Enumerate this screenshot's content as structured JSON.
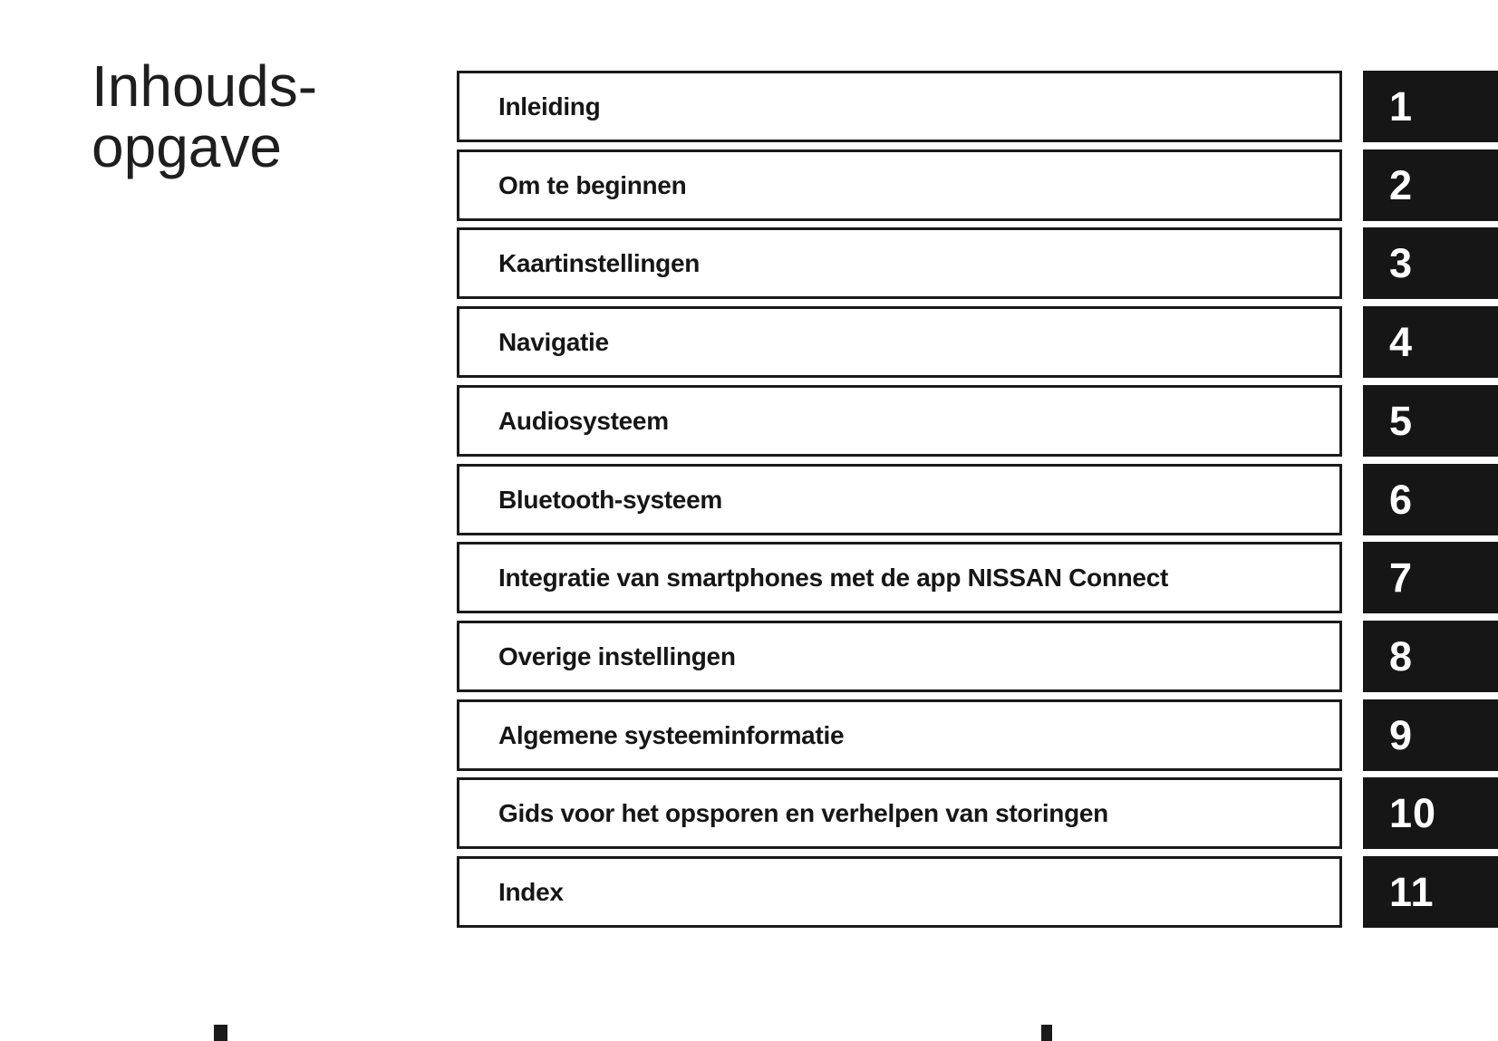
{
  "page": {
    "title_line1": "Inhouds-",
    "title_line2": "opgave"
  },
  "toc": {
    "chapters": [
      {
        "label": "Inleiding",
        "number": "1"
      },
      {
        "label": "Om te beginnen",
        "number": "2"
      },
      {
        "label": "Kaartinstellingen",
        "number": "3"
      },
      {
        "label": "Navigatie",
        "number": "4"
      },
      {
        "label": "Audiosysteem",
        "number": "5"
      },
      {
        "label": "Bluetooth-systeem",
        "number": "6"
      },
      {
        "label": "Integratie van smartphones met de app NISSAN Connect",
        "number": "7"
      },
      {
        "label": "Overige instellingen",
        "number": "8"
      },
      {
        "label": "Algemene systeeminformatie",
        "number": "9"
      },
      {
        "label": "Gids voor het opsporen en verhelpen van storingen",
        "number": "10"
      },
      {
        "label": "Index",
        "number": "11"
      }
    ]
  },
  "colors": {
    "ink": "#1a1a1a",
    "tab_background": "#161616",
    "tab_text": "#ffffff",
    "page_background": "#ffffff"
  },
  "print_marks": [
    {
      "name": "registration-mark-left"
    },
    {
      "name": "registration-mark-right"
    }
  ]
}
